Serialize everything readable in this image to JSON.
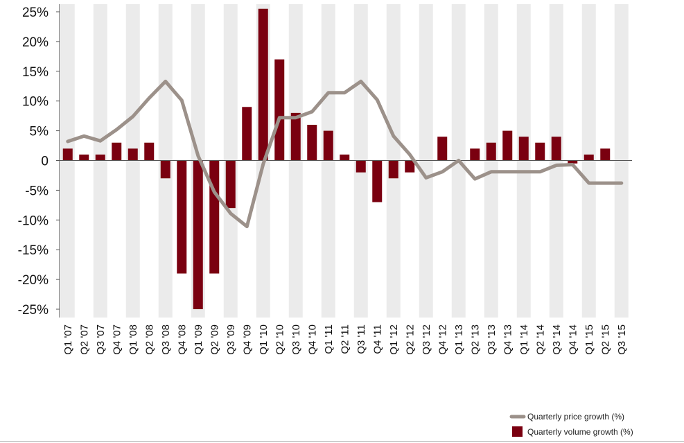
{
  "chart_data": {
    "type": "bar",
    "title": "",
    "xlabel": "",
    "ylabel": "",
    "ylim": [
      -25,
      25
    ],
    "yticks": [
      25,
      20,
      15,
      10,
      5,
      0,
      -5,
      -10,
      -15,
      -20,
      -25
    ],
    "ytick_labels": [
      "25%",
      "20%",
      "15%",
      "10%",
      "5%",
      "0",
      "-5%",
      "-10%",
      "-15%",
      "-20%",
      "-25%"
    ],
    "categories": [
      "Q1 '07",
      "Q2 '07",
      "Q3 '07",
      "Q4 '07",
      "Q1 '08",
      "Q2 '08",
      "Q3 '08",
      "Q4 '08",
      "Q1 '09",
      "Q2 '09",
      "Q3 '09",
      "Q4 '09",
      "Q1 '10",
      "Q2 '10",
      "Q3 '10",
      "Q4 '10",
      "Q1 '11",
      "Q2 '11",
      "Q3 '11",
      "Q4 '11",
      "Q1 '12",
      "Q2 '12",
      "Q3 '12",
      "Q4 '12",
      "Q1 '13",
      "Q2 '13",
      "Q3 '13",
      "Q4 '13",
      "Q1 '14",
      "Q2 '14",
      "Q3 '14",
      "Q4 '14",
      "Q1 '15",
      "Q2 '15",
      "Q3 '15"
    ],
    "series": [
      {
        "name": "Quarterly volume growth (%)",
        "type": "bar",
        "color": "#7a0010",
        "values": [
          2,
          1,
          1,
          3,
          2,
          3,
          -3,
          -19,
          -25,
          -19,
          -8,
          9,
          25.5,
          17,
          8,
          6,
          5,
          1,
          -2,
          -7,
          -3,
          -2,
          0,
          4,
          0,
          2,
          3,
          5,
          4,
          3,
          4,
          -0.5,
          1,
          2,
          0
        ]
      },
      {
        "name": "Quarterly price growth (%)",
        "type": "line",
        "color": "#9c918a",
        "values": [
          3.2,
          4.1,
          3.3,
          5.2,
          7.4,
          10.5,
          13.3,
          10.1,
          0.8,
          -5.3,
          -8.9,
          -11.1,
          -0.6,
          7.2,
          7.2,
          8.2,
          11.4,
          11.4,
          13.3,
          10.2,
          4.1,
          1.0,
          -2.9,
          -1.9,
          0.0,
          -3.1,
          -1.9,
          -1.9,
          -1.9,
          -1.9,
          -0.8,
          -0.7,
          -3.8,
          -3.8,
          -3.8
        ]
      }
    ],
    "legend": {
      "position": "bottom-right",
      "items": [
        "Quarterly price growth (%)",
        "Quarterly volume growth (%)"
      ]
    },
    "colors": {
      "band": "#ebebeb",
      "axis": "#555555"
    }
  }
}
